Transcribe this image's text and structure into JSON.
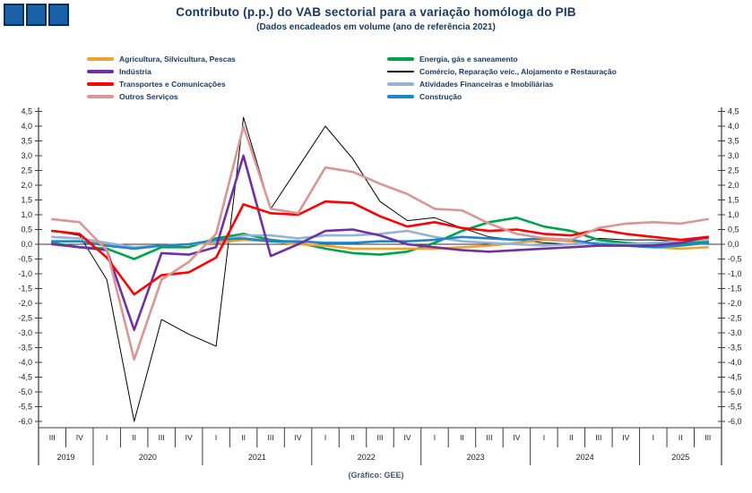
{
  "header": {
    "title": "Contributo (p.p.) do VAB sectorial para a variação homóloga do PIB",
    "subtitle": "(Dados encadeados em volume (ano de referência 2021)"
  },
  "footer": {
    "caption": "(Gráfico: GEE)"
  },
  "logo": {
    "name": "three-blue-squares-logo",
    "square_color": "#1A62A8",
    "border_color": "#0E2D52"
  },
  "legend": {
    "position": "top",
    "columns": [
      [
        "agricultura",
        "industria",
        "transportes",
        "outros-servicos"
      ],
      [
        "energia",
        "comercio",
        "financeiras",
        "construcao"
      ]
    ]
  },
  "chart_data": {
    "type": "line",
    "title": "Contributo (p.p.) do VAB sectorial para a variação homóloga do PIB",
    "subtitle": "(Dados encadeados em volume (ano de referência 2021)",
    "xlabel": "",
    "ylabel": "",
    "ylim": [
      -6.0,
      4.5
    ],
    "ytick_step": 0.5,
    "decimal_format": "comma",
    "grid": "zero-line-only",
    "dual_y_axis": true,
    "x_quarters": [
      "III",
      "IV",
      "I",
      "II",
      "III",
      "IV",
      "I",
      "II",
      "III",
      "IV",
      "I",
      "II",
      "III",
      "IV",
      "I",
      "II",
      "III",
      "IV",
      "I",
      "II",
      "III",
      "IV",
      "I",
      "II",
      "III"
    ],
    "year_groups": [
      {
        "year": "2019",
        "quarters": 2
      },
      {
        "year": "2020",
        "quarters": 4
      },
      {
        "year": "2021",
        "quarters": 4
      },
      {
        "year": "2022",
        "quarters": 4
      },
      {
        "year": "2023",
        "quarters": 4
      },
      {
        "year": "2024",
        "quarters": 4
      },
      {
        "year": "2025",
        "quarters": 3
      }
    ],
    "draw_order": [
      "comercio",
      "energia",
      "agricultura",
      "financeiras",
      "construcao",
      "industria",
      "transportes",
      "outros-servicos"
    ],
    "series": [
      {
        "id": "agricultura",
        "name": "Agricultura, Silvicultura, Pescas",
        "color": "#F0A22E",
        "thin": false,
        "values": [
          0.1,
          0.1,
          0.0,
          -0.1,
          -0.05,
          0.0,
          0.05,
          0.15,
          0.1,
          0.0,
          -0.05,
          -0.15,
          -0.15,
          -0.15,
          -0.15,
          -0.1,
          -0.05,
          0.05,
          0.15,
          0.1,
          0.0,
          -0.05,
          -0.1,
          -0.15,
          -0.1
        ]
      },
      {
        "id": "industria",
        "name": "Indústria",
        "color": "#7030A0",
        "thin": false,
        "values": [
          0.0,
          -0.1,
          -0.2,
          -2.9,
          -0.3,
          -0.35,
          -0.1,
          3.0,
          -0.4,
          0.0,
          0.45,
          0.5,
          0.3,
          0.0,
          -0.1,
          -0.2,
          -0.25,
          -0.2,
          -0.15,
          -0.1,
          -0.05,
          -0.05,
          -0.05,
          0.05,
          0.25
        ]
      },
      {
        "id": "transportes",
        "name": "Transportes e Comunicações",
        "color": "#FF0000",
        "thin": false,
        "values": [
          0.45,
          0.35,
          -0.45,
          -1.7,
          -1.05,
          -0.95,
          -0.45,
          1.35,
          1.05,
          1.0,
          1.45,
          1.4,
          0.95,
          0.6,
          0.75,
          0.55,
          0.45,
          0.5,
          0.35,
          0.3,
          0.5,
          0.35,
          0.25,
          0.15,
          0.25
        ]
      },
      {
        "id": "outros-servicos",
        "name": "Outros Serviços",
        "color": "#D99694",
        "thin": false,
        "values": [
          0.85,
          0.75,
          -0.2,
          -3.9,
          -1.2,
          -0.6,
          0.35,
          4.0,
          1.2,
          1.05,
          2.6,
          2.45,
          2.05,
          1.7,
          1.2,
          1.15,
          0.7,
          0.35,
          0.2,
          0.15,
          0.55,
          0.7,
          0.75,
          0.7,
          0.85
        ]
      },
      {
        "id": "energia",
        "name": "Energia, gás e saneamento",
        "color": "#00A14C",
        "thin": false,
        "values": [
          0.05,
          -0.1,
          -0.15,
          -0.5,
          -0.1,
          -0.1,
          0.2,
          0.35,
          0.15,
          0.05,
          -0.15,
          -0.3,
          -0.35,
          -0.25,
          0.05,
          0.45,
          0.75,
          0.9,
          0.6,
          0.45,
          0.15,
          0.05,
          0.0,
          0.0,
          0.1
        ]
      },
      {
        "id": "comercio",
        "name": "Comércio, Reparação veíc., Alojamento e Restauração",
        "color": "#000000",
        "thin": true,
        "values": [
          0.45,
          0.3,
          -1.2,
          -6.0,
          -2.55,
          -3.05,
          -3.45,
          4.3,
          1.2,
          2.6,
          4.0,
          2.9,
          1.45,
          0.8,
          0.9,
          0.55,
          0.25,
          0.15,
          0.05,
          0.0,
          0.2,
          0.15,
          0.15,
          0.1,
          0.2
        ]
      },
      {
        "id": "financeiras",
        "name": "Atividades Financeiras e Imobiliárias",
        "color": "#95B3D7",
        "thin": false,
        "values": [
          0.25,
          0.2,
          0.05,
          -0.1,
          -0.05,
          0.0,
          0.1,
          0.3,
          0.3,
          0.2,
          0.3,
          0.3,
          0.35,
          0.45,
          0.25,
          0.1,
          0.05,
          0.0,
          -0.05,
          0.0,
          0.05,
          0.0,
          0.05,
          0.1,
          0.15
        ]
      },
      {
        "id": "construcao",
        "name": "Construção",
        "color": "#1F87C9",
        "thin": false,
        "values": [
          0.1,
          0.1,
          -0.05,
          -0.15,
          -0.05,
          0.0,
          0.15,
          0.2,
          0.1,
          0.1,
          0.05,
          0.05,
          0.1,
          0.1,
          0.15,
          0.25,
          0.2,
          0.15,
          0.2,
          0.15,
          0.0,
          -0.05,
          -0.1,
          -0.05,
          0.05
        ]
      }
    ]
  }
}
